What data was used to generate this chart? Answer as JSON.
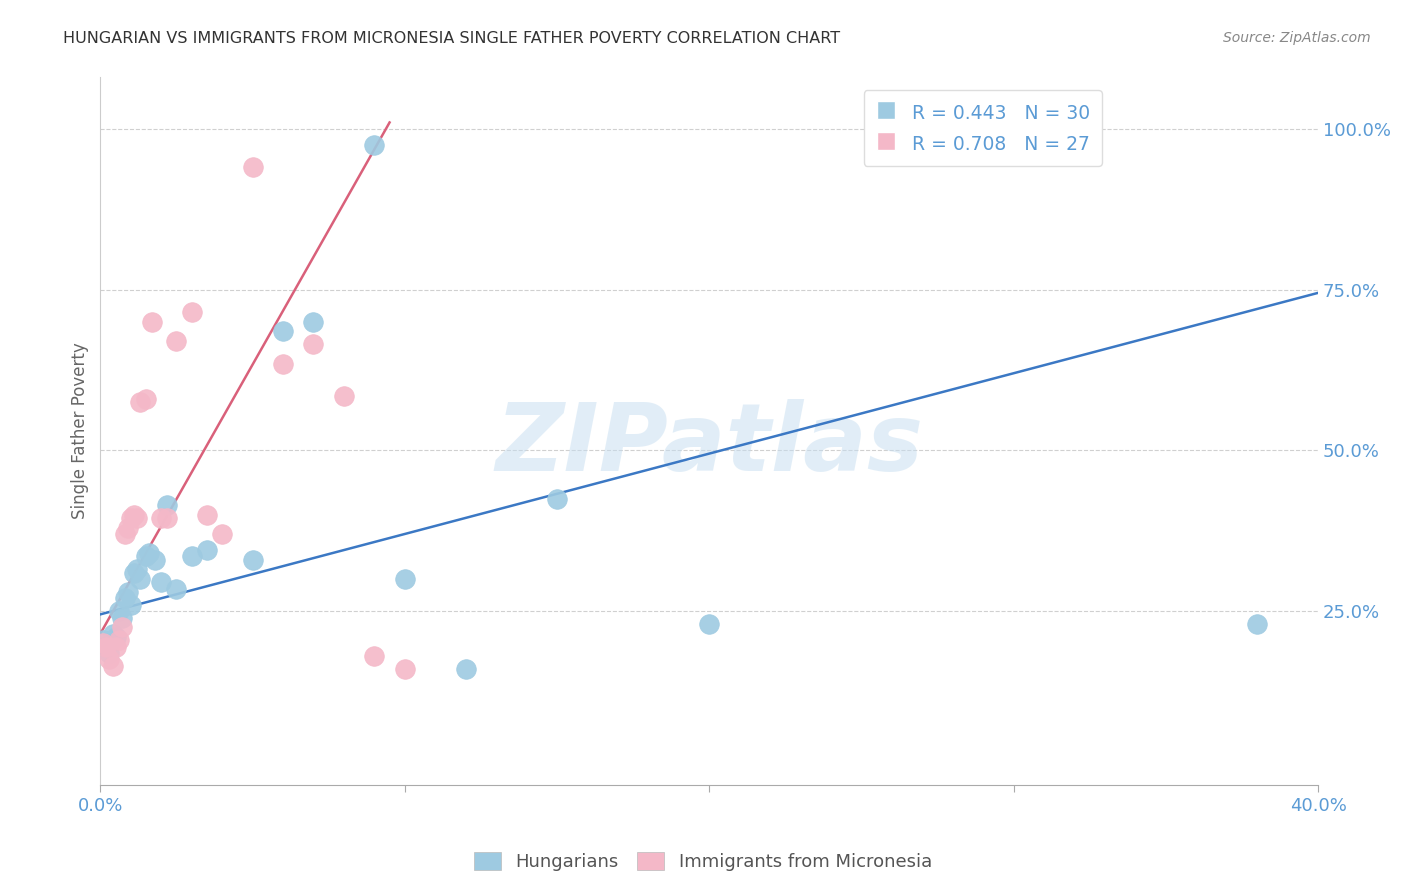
{
  "title": "HUNGARIAN VS IMMIGRANTS FROM MICRONESIA SINGLE FATHER POVERTY CORRELATION CHART",
  "source": "Source: ZipAtlas.com",
  "ylabel_label": "Single Father Poverty",
  "watermark": "ZIPatlas",
  "xlim": [
    0.0,
    0.4
  ],
  "ylim": [
    -0.02,
    1.08
  ],
  "xtick_vals": [
    0.0,
    0.1,
    0.2,
    0.3,
    0.4
  ],
  "xtick_show_labels": [
    0.0,
    0.4
  ],
  "xtick_show_text": [
    "0.0%",
    "40.0%"
  ],
  "ytick_vals": [
    0.25,
    0.5,
    0.75,
    1.0
  ],
  "ytick_labels": [
    "25.0%",
    "50.0%",
    "75.0%",
    "100.0%"
  ],
  "blue_color": "#9ecae1",
  "pink_color": "#f4b8c8",
  "blue_line_color": "#3b78c4",
  "pink_line_color": "#d9607a",
  "axis_color": "#5b9bd5",
  "grid_color": "#d0d0d0",
  "legend_R1": "R = 0.443",
  "legend_N1": "N = 30",
  "legend_R2": "R = 0.708",
  "legend_N2": "N = 27",
  "blue_x": [
    0.001,
    0.002,
    0.003,
    0.004,
    0.005,
    0.006,
    0.007,
    0.008,
    0.009,
    0.01,
    0.011,
    0.012,
    0.013,
    0.015,
    0.016,
    0.018,
    0.02,
    0.022,
    0.025,
    0.03,
    0.035,
    0.05,
    0.06,
    0.07,
    0.09,
    0.1,
    0.12,
    0.15,
    0.2,
    0.38
  ],
  "blue_y": [
    0.205,
    0.195,
    0.185,
    0.215,
    0.21,
    0.25,
    0.24,
    0.27,
    0.28,
    0.26,
    0.31,
    0.315,
    0.3,
    0.335,
    0.34,
    0.33,
    0.295,
    0.415,
    0.285,
    0.335,
    0.345,
    0.33,
    0.685,
    0.7,
    0.975,
    0.3,
    0.16,
    0.425,
    0.23,
    0.23
  ],
  "pink_x": [
    0.001,
    0.002,
    0.003,
    0.004,
    0.005,
    0.006,
    0.007,
    0.008,
    0.009,
    0.01,
    0.011,
    0.012,
    0.013,
    0.015,
    0.017,
    0.02,
    0.022,
    0.025,
    0.03,
    0.035,
    0.04,
    0.05,
    0.06,
    0.07,
    0.08,
    0.09,
    0.1
  ],
  "pink_y": [
    0.2,
    0.195,
    0.175,
    0.165,
    0.195,
    0.205,
    0.225,
    0.37,
    0.38,
    0.395,
    0.4,
    0.395,
    0.575,
    0.58,
    0.7,
    0.395,
    0.395,
    0.67,
    0.715,
    0.4,
    0.37,
    0.94,
    0.635,
    0.665,
    0.585,
    0.18,
    0.16
  ],
  "blue_trend_x": [
    0.0,
    0.4
  ],
  "blue_trend_y": [
    0.245,
    0.745
  ],
  "pink_trend_x": [
    0.0,
    0.095
  ],
  "pink_trend_y": [
    0.215,
    1.01
  ]
}
